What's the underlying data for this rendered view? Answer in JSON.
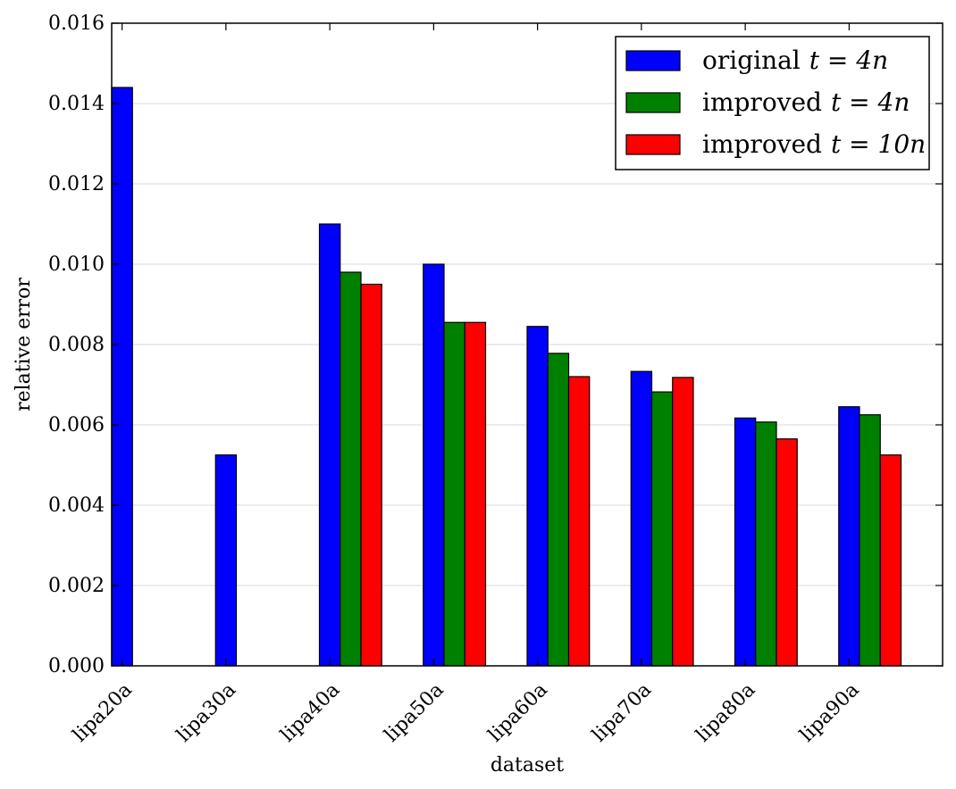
{
  "chart_data": {
    "type": "bar",
    "title": "",
    "xlabel": "dataset",
    "ylabel": "relative error",
    "ylim": [
      0,
      0.016
    ],
    "yticks": [
      "0.000",
      "0.002",
      "0.004",
      "0.006",
      "0.008",
      "0.010",
      "0.012",
      "0.014",
      "0.016"
    ],
    "grid": "horizontal",
    "legend_position": "top-right",
    "categories": [
      "lipa20a",
      "lipa30a",
      "lipa40a",
      "lipa50a",
      "lipa60a",
      "lipa70a",
      "lipa80a",
      "lipa90a"
    ],
    "series": [
      {
        "name": "original t=4n",
        "legend_text": "original",
        "legend_math": "t = 4n",
        "color": "#0000ff",
        "values": [
          0.0144,
          0.00525,
          0.011,
          0.01,
          0.00845,
          0.00733,
          0.00617,
          0.00645
        ]
      },
      {
        "name": "improved t=4n",
        "legend_text": "improved",
        "legend_math": "t = 4n",
        "color": "#008000",
        "values": [
          null,
          null,
          0.0098,
          0.00855,
          0.00778,
          0.00682,
          0.00607,
          0.00625
        ]
      },
      {
        "name": "improved t=10n",
        "legend_text": "improved",
        "legend_math": "t = 10n",
        "color": "#ff0000",
        "values": [
          null,
          null,
          0.0095,
          0.00855,
          0.0072,
          0.00718,
          0.00565,
          0.00525
        ]
      }
    ]
  }
}
